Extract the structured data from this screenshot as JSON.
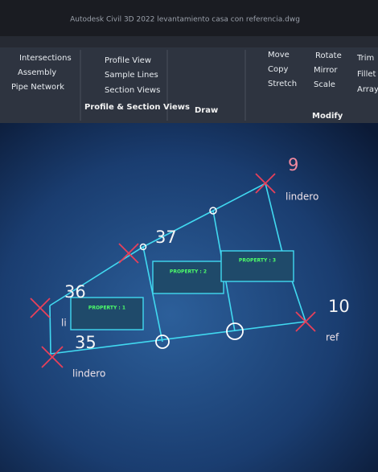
{
  "title_bar": {
    "title": "Autodesk Civil 3D 2022   levantamiento casa con referencia.dwg"
  },
  "ribbon": {
    "panels": [
      {
        "label": "Profile & Section Views",
        "buttons": [
          "Intersections",
          "Assembly",
          "Pipe Network",
          "Profile View",
          "Sample Lines",
          "Section Views"
        ]
      },
      {
        "label": "Draw",
        "buttons": []
      },
      {
        "label": "Modify",
        "buttons": [
          "Move",
          "Copy",
          "Stretch",
          "Rotate",
          "Mirror",
          "Scale",
          "Trim",
          "Fillet",
          "Array"
        ]
      }
    ]
  },
  "drawing": {
    "point_labels": [
      "9",
      "37",
      "36",
      "10",
      "35"
    ],
    "annotations": [
      "lindero",
      "li",
      "lindero",
      "ref"
    ],
    "parcel_labels": [
      "PROPERTY : 1",
      "PROPERTY : 2",
      "PROPERTY : 3"
    ]
  }
}
